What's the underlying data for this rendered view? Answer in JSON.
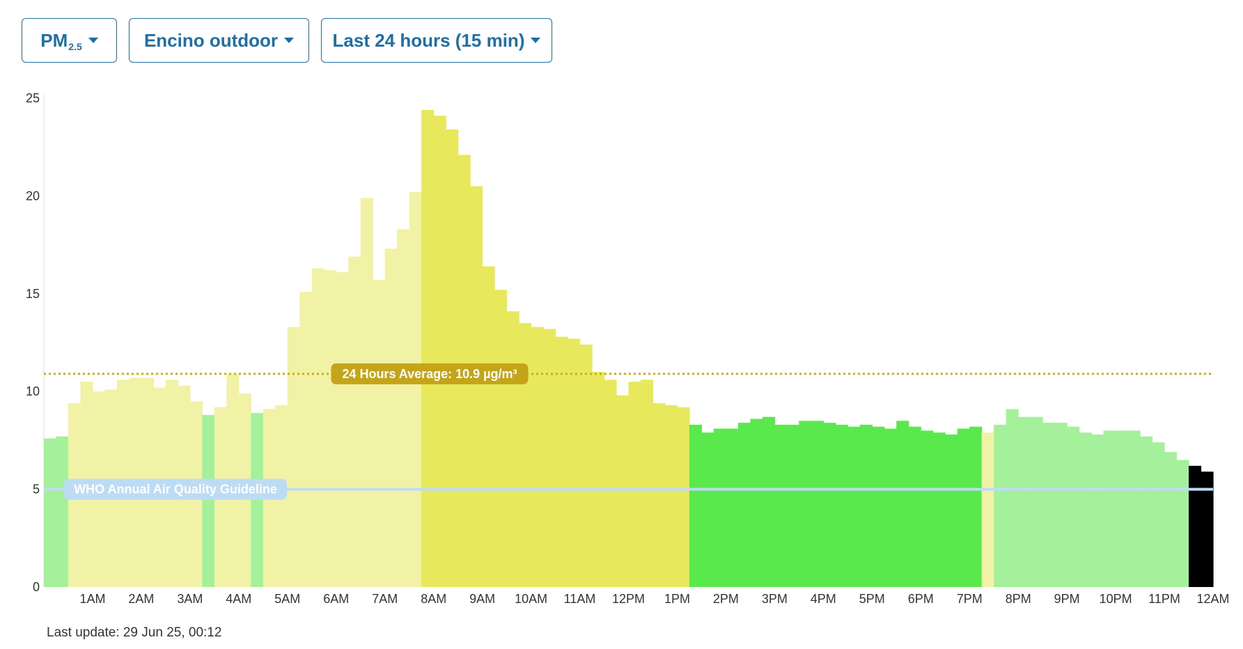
{
  "toolbar": {
    "pollutant": {
      "label": "PM",
      "subscript": "2.5"
    },
    "location": {
      "label": "Encino outdoor"
    },
    "range": {
      "label": "Last 24 hours (15 min)"
    }
  },
  "footer": {
    "last_update": "Last update: 29 Jun 25, 00:12"
  },
  "colors": {
    "light_green": "#a5f09a",
    "green": "#5ae94c",
    "light_yellow": "#f2f2a6",
    "yellow": "#e8e85c",
    "average_line": "#c9b018",
    "average_label_bg": "#c4a519",
    "who_line": "#bcdcf5",
    "who_label_bg": "#bcdcf5"
  },
  "chart_data": {
    "type": "bar",
    "ylim": [
      0,
      25
    ],
    "y_ticks": [
      "0",
      "5",
      "10",
      "15",
      "20",
      "25"
    ],
    "x_ticks": [
      "1AM",
      "2AM",
      "3AM",
      "4AM",
      "5AM",
      "6AM",
      "7AM",
      "8AM",
      "9AM",
      "10AM",
      "11AM",
      "12PM",
      "1PM",
      "2PM",
      "3PM",
      "4PM",
      "5PM",
      "6PM",
      "7PM",
      "8PM",
      "9PM",
      "10PM",
      "11PM",
      "12AM"
    ],
    "reference_lines": [
      {
        "label": "24 Hours Average: 10.9 µg/m³",
        "value": 10.9
      },
      {
        "label": "WHO Annual Air Quality Guideline",
        "value": 5
      }
    ],
    "values": [
      7.6,
      7.7,
      9.4,
      10.5,
      10.0,
      10.1,
      10.6,
      10.7,
      10.7,
      10.2,
      10.6,
      10.3,
      9.5,
      8.8,
      9.2,
      10.9,
      9.9,
      8.9,
      9.1,
      9.3,
      13.3,
      15.1,
      16.3,
      16.2,
      16.1,
      16.9,
      19.9,
      15.7,
      17.3,
      18.3,
      20.2,
      24.4,
      24.1,
      23.4,
      22.1,
      20.5,
      16.4,
      15.2,
      14.1,
      13.5,
      13.3,
      13.2,
      12.8,
      12.7,
      12.4,
      11.0,
      10.6,
      9.8,
      10.5,
      10.6,
      9.4,
      9.3,
      9.2,
      8.3,
      7.9,
      8.1,
      8.1,
      8.4,
      8.6,
      8.7,
      8.3,
      8.3,
      8.5,
      8.5,
      8.4,
      8.3,
      8.2,
      8.3,
      8.2,
      8.1,
      8.5,
      8.2,
      8.0,
      7.9,
      7.8,
      8.1,
      8.2,
      7.9,
      8.3,
      9.1,
      8.7,
      8.7,
      8.4,
      8.4,
      8.2,
      7.9,
      7.8,
      8.0,
      8.0,
      8.0,
      7.7,
      7.4,
      6.9,
      6.5,
      6.2,
      5.9
    ],
    "categories_color": [
      "light_green",
      "light_green",
      "light_yellow",
      "light_yellow",
      "light_yellow",
      "light_yellow",
      "light_yellow",
      "light_yellow",
      "light_yellow",
      "light_yellow",
      "light_yellow",
      "light_yellow",
      "light_yellow",
      "light_green",
      "light_yellow",
      "light_yellow",
      "light_yellow",
      "light_green",
      "light_yellow",
      "light_yellow",
      "light_yellow",
      "light_yellow",
      "light_yellow",
      "light_yellow",
      "light_yellow",
      "light_yellow",
      "light_yellow",
      "light_yellow",
      "light_yellow",
      "light_yellow",
      "light_yellow",
      "yellow",
      "yellow",
      "yellow",
      "yellow",
      "yellow",
      "yellow",
      "yellow",
      "yellow",
      "yellow",
      "yellow",
      "yellow",
      "yellow",
      "yellow",
      "yellow",
      "yellow",
      "yellow",
      "yellow",
      "yellow",
      "yellow",
      "yellow",
      "yellow",
      "yellow",
      "green",
      "green",
      "green",
      "green",
      "green",
      "green",
      "green",
      "green",
      "green",
      "green",
      "green",
      "green",
      "green",
      "green",
      "green",
      "green",
      "green",
      "green",
      "green",
      "green",
      "green",
      "green",
      "green",
      "green",
      "light_yellow",
      "light_green",
      "light_green",
      "light_green",
      "light_green",
      "light_green",
      "light_green",
      "light_green",
      "light_green",
      "light_green",
      "light_green",
      "light_green",
      "light_green",
      "light_green",
      "light_green",
      "light_green",
      "light_green"
    ]
  }
}
